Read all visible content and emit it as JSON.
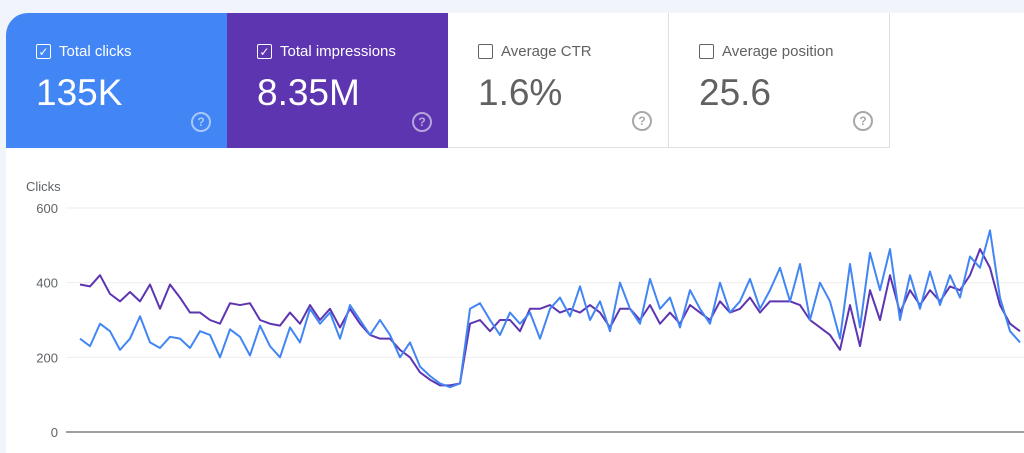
{
  "cards": [
    {
      "label": "Total clicks",
      "value": "135K",
      "checked": true,
      "color": "#4285f4"
    },
    {
      "label": "Total impressions",
      "value": "8.35M",
      "checked": true,
      "color": "#5e35b1"
    },
    {
      "label": "Average CTR",
      "value": "1.6%",
      "checked": false
    },
    {
      "label": "Average position",
      "value": "25.6",
      "checked": false
    }
  ],
  "help_glyph": "?",
  "check_glyph": "✓",
  "chart_data": {
    "type": "line",
    "ylabel": "Clicks",
    "ylim": [
      0,
      600
    ],
    "yticks": [
      "0",
      "200",
      "400",
      "600"
    ],
    "grid": true,
    "series": [
      {
        "name": "Total clicks",
        "color": "#4285f4",
        "values": [
          250,
          230,
          290,
          270,
          220,
          250,
          310,
          240,
          225,
          255,
          250,
          225,
          270,
          260,
          200,
          275,
          255,
          205,
          285,
          230,
          200,
          280,
          240,
          330,
          290,
          320,
          250,
          340,
          300,
          260,
          300,
          260,
          200,
          240,
          175,
          150,
          130,
          120,
          130,
          330,
          345,
          300,
          260,
          320,
          290,
          320,
          250,
          330,
          360,
          310,
          390,
          300,
          350,
          270,
          400,
          330,
          290,
          410,
          330,
          360,
          280,
          380,
          330,
          290,
          400,
          320,
          350,
          410,
          330,
          380,
          440,
          350,
          450,
          300,
          400,
          350,
          250,
          450,
          280,
          480,
          380,
          490,
          300,
          420,
          330,
          430,
          340,
          420,
          360,
          470,
          440,
          540,
          360,
          270,
          240
        ]
      },
      {
        "name": "Total impressions",
        "color": "#5e35b1",
        "values": [
          395,
          390,
          420,
          370,
          350,
          375,
          350,
          395,
          330,
          395,
          360,
          320,
          320,
          300,
          290,
          345,
          340,
          345,
          300,
          290,
          285,
          320,
          290,
          340,
          300,
          330,
          280,
          330,
          290,
          260,
          250,
          250,
          220,
          200,
          160,
          140,
          125,
          125,
          130,
          290,
          300,
          270,
          300,
          300,
          270,
          330,
          330,
          340,
          320,
          330,
          320,
          340,
          320,
          280,
          330,
          330,
          300,
          340,
          290,
          320,
          290,
          340,
          320,
          300,
          350,
          320,
          330,
          360,
          320,
          350,
          350,
          350,
          340,
          300,
          280,
          260,
          220,
          340,
          230,
          380,
          300,
          420,
          320,
          380,
          340,
          380,
          350,
          390,
          380,
          420,
          490,
          440,
          340,
          290,
          270
        ]
      }
    ]
  }
}
